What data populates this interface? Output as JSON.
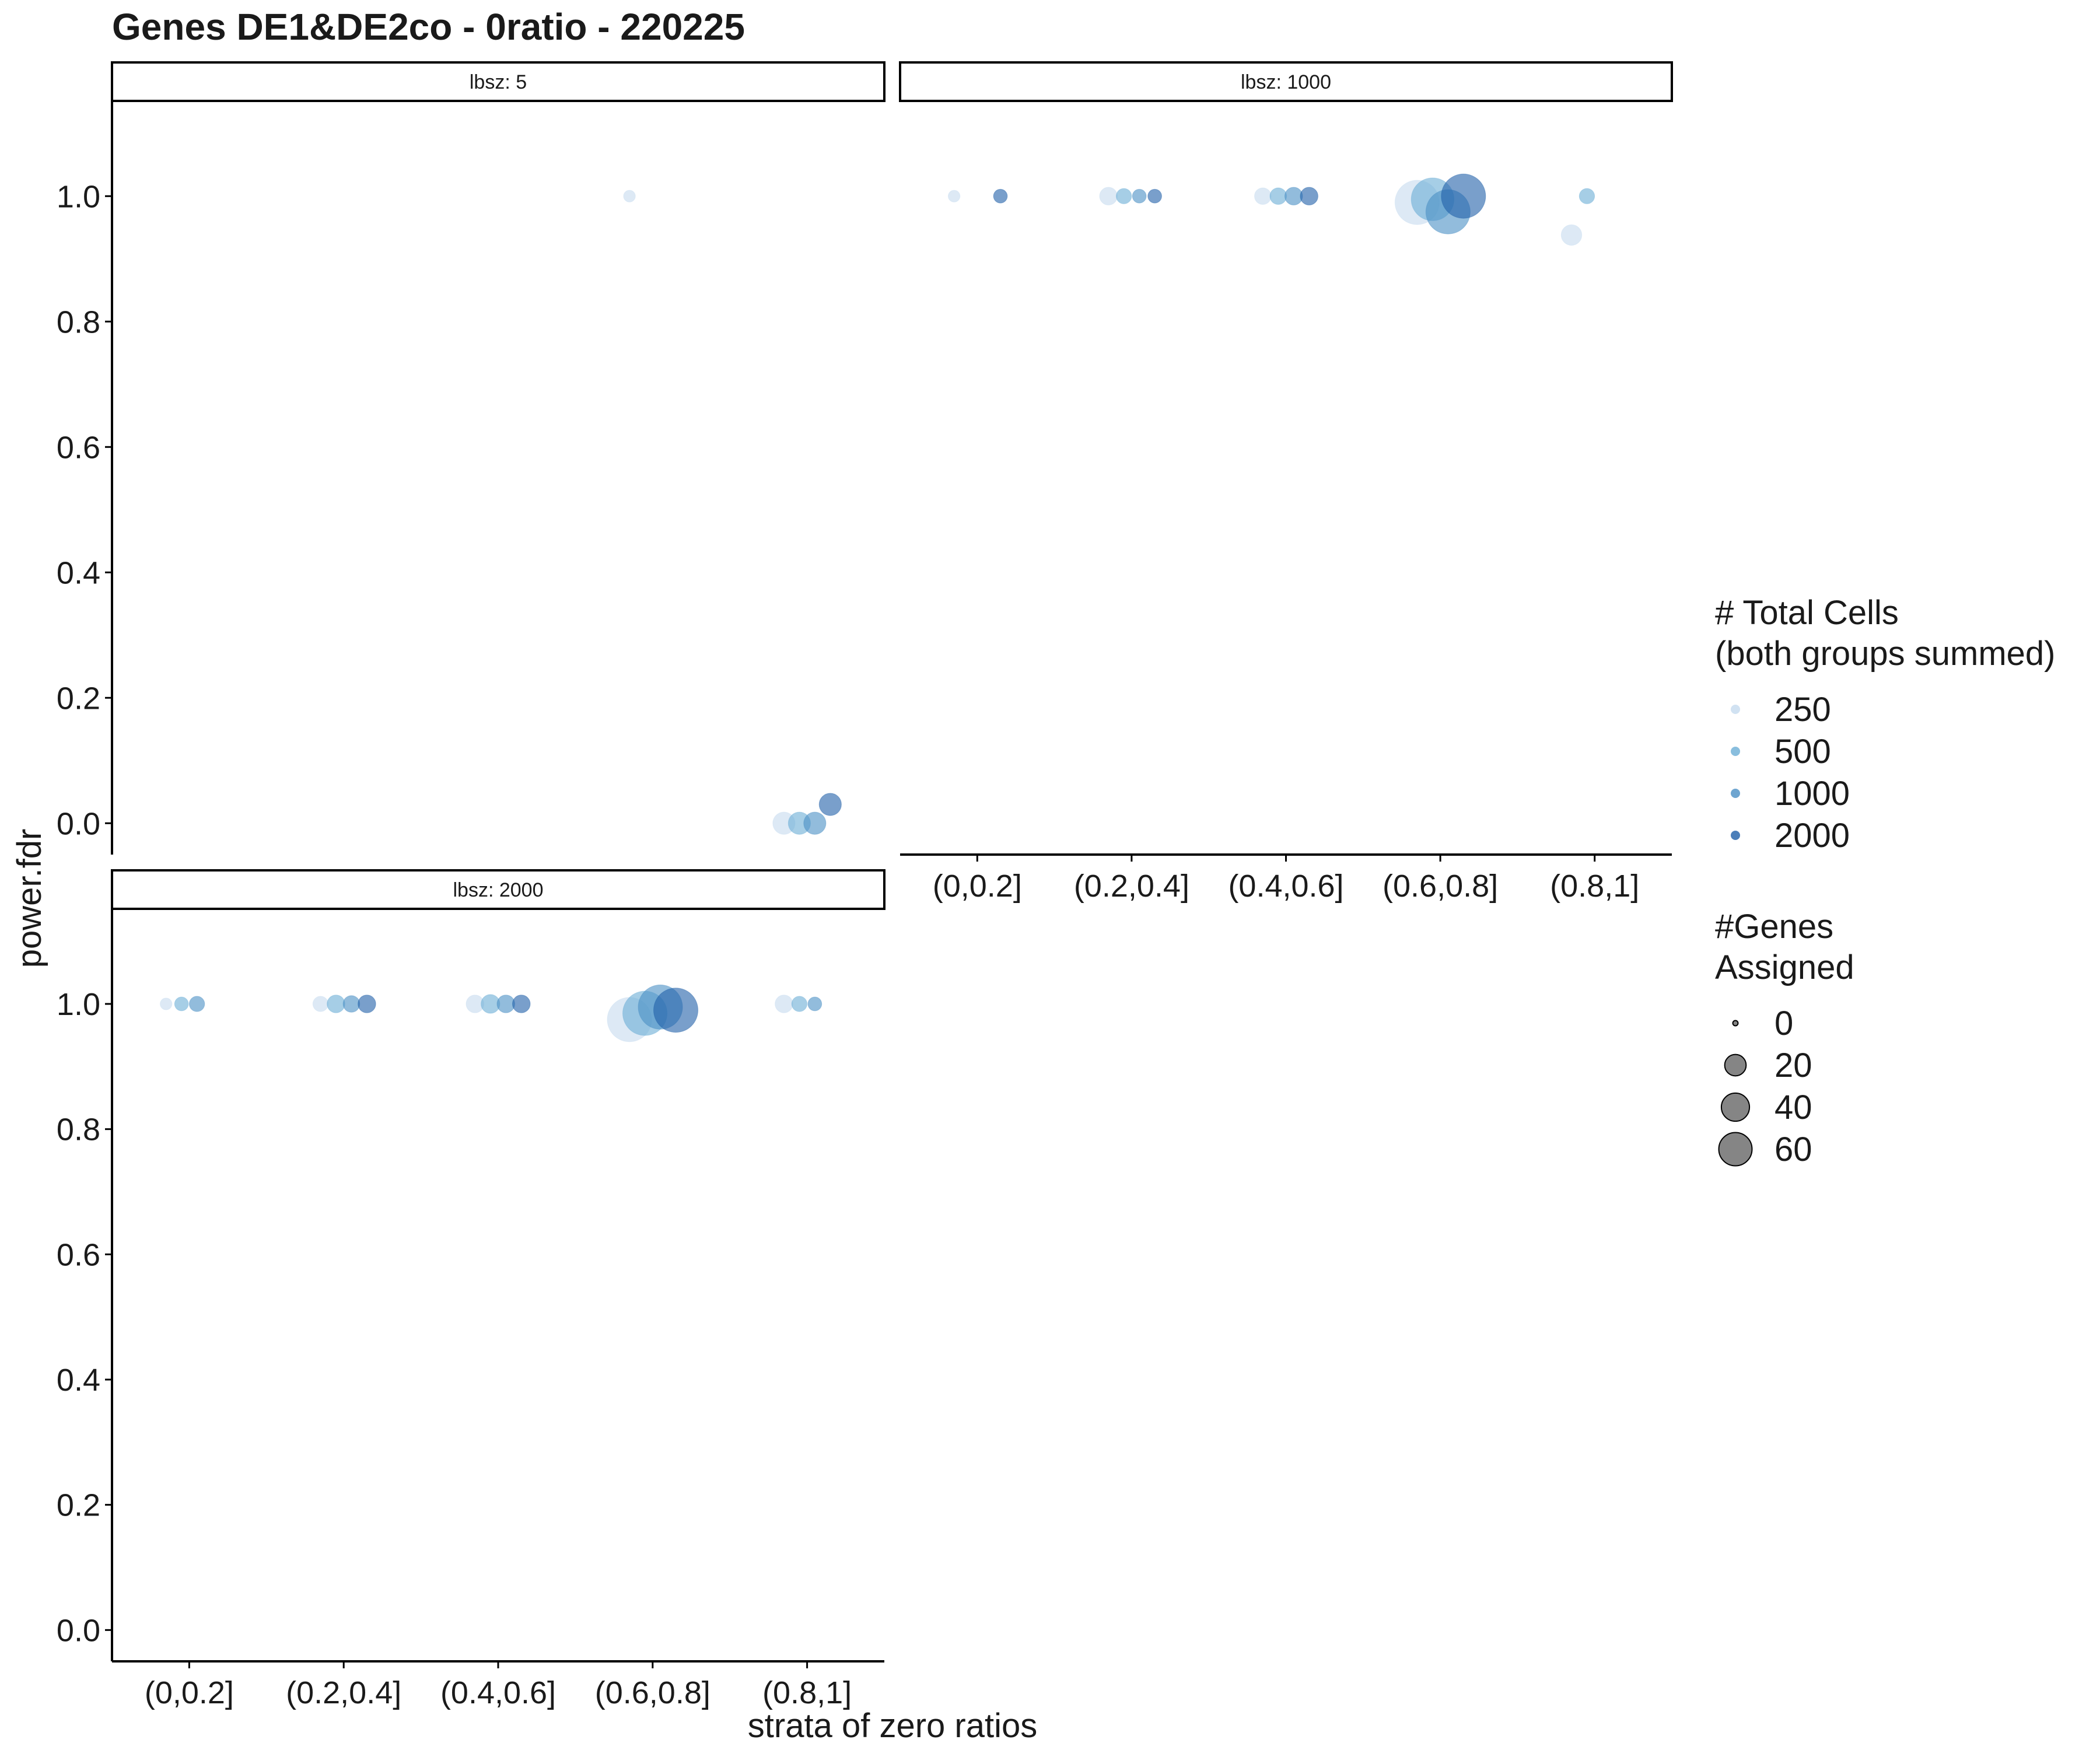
{
  "chart_data": {
    "type": "scatter",
    "title": "Genes DE1&DE2co - 0ratio - 220225",
    "xlabel": "strata of zero ratios",
    "ylabel": "power.fdr",
    "categories": [
      "(0,0.2]",
      "(0.2,0.4]",
      "(0.4,0.6]",
      "(0.6,0.8]",
      "(0.8,1]"
    ],
    "ylim": [
      -0.05,
      1.15
    ],
    "yticks": [
      0.0,
      0.2,
      0.4,
      0.6,
      0.8,
      1.0
    ],
    "ytick_labels": [
      "0.0",
      "0.2",
      "0.4",
      "0.6",
      "0.8",
      "1.0"
    ],
    "grid": false,
    "facets": [
      {
        "label": "lbsz: 5",
        "points": [
          {
            "category": "(0.6,0.8]",
            "offset": -0.15,
            "y": 1.0,
            "cells": 250,
            "genes": 1
          },
          {
            "category": "(0.8,1]",
            "offset": -0.15,
            "y": 0.0,
            "cells": 250,
            "genes": 10
          },
          {
            "category": "(0.8,1]",
            "offset": -0.05,
            "y": 0.0,
            "cells": 500,
            "genes": 10
          },
          {
            "category": "(0.8,1]",
            "offset": 0.05,
            "y": 0.0,
            "cells": 1000,
            "genes": 10
          },
          {
            "category": "(0.8,1]",
            "offset": 0.15,
            "y": 0.03,
            "cells": 2000,
            "genes": 10
          }
        ]
      },
      {
        "label": "lbsz: 1000",
        "points": [
          {
            "category": "(0,0.2]",
            "offset": -0.15,
            "y": 1.0,
            "cells": 250,
            "genes": 1
          },
          {
            "category": "(0,0.2]",
            "offset": 0.15,
            "y": 1.0,
            "cells": 2000,
            "genes": 2
          },
          {
            "category": "(0.2,0.4]",
            "offset": -0.15,
            "y": 1.0,
            "cells": 250,
            "genes": 5
          },
          {
            "category": "(0.2,0.4]",
            "offset": -0.05,
            "y": 1.0,
            "cells": 500,
            "genes": 3
          },
          {
            "category": "(0.2,0.4]",
            "offset": 0.05,
            "y": 1.0,
            "cells": 1000,
            "genes": 2
          },
          {
            "category": "(0.2,0.4]",
            "offset": 0.15,
            "y": 1.0,
            "cells": 2000,
            "genes": 2
          },
          {
            "category": "(0.4,0.6]",
            "offset": -0.15,
            "y": 1.0,
            "cells": 250,
            "genes": 4
          },
          {
            "category": "(0.4,0.6]",
            "offset": -0.05,
            "y": 1.0,
            "cells": 500,
            "genes": 4
          },
          {
            "category": "(0.4,0.6]",
            "offset": 0.05,
            "y": 1.0,
            "cells": 1000,
            "genes": 5
          },
          {
            "category": "(0.4,0.6]",
            "offset": 0.15,
            "y": 1.0,
            "cells": 2000,
            "genes": 5
          },
          {
            "category": "(0.6,0.8]",
            "offset": -0.15,
            "y": 0.99,
            "cells": 250,
            "genes": 60
          },
          {
            "category": "(0.6,0.8]",
            "offset": -0.05,
            "y": 0.995,
            "cells": 500,
            "genes": 55
          },
          {
            "category": "(0.6,0.8]",
            "offset": 0.05,
            "y": 0.975,
            "cells": 1000,
            "genes": 60
          },
          {
            "category": "(0.6,0.8]",
            "offset": 0.15,
            "y": 1.0,
            "cells": 2000,
            "genes": 60
          },
          {
            "category": "(0.8,1]",
            "offset": -0.15,
            "y": 0.938,
            "cells": 250,
            "genes": 8
          },
          {
            "category": "(0.8,1]",
            "offset": -0.05,
            "y": 1.0,
            "cells": 500,
            "genes": 3
          }
        ]
      },
      {
        "label": "lbsz: 2000",
        "points": [
          {
            "category": "(0,0.2]",
            "offset": -0.15,
            "y": 1.0,
            "cells": 250,
            "genes": 1
          },
          {
            "category": "(0,0.2]",
            "offset": -0.05,
            "y": 1.0,
            "cells": 500,
            "genes": 2
          },
          {
            "category": "(0,0.2]",
            "offset": 0.05,
            "y": 1.0,
            "cells": 1000,
            "genes": 3
          },
          {
            "category": "(0.2,0.4]",
            "offset": -0.15,
            "y": 1.0,
            "cells": 250,
            "genes": 3
          },
          {
            "category": "(0.2,0.4]",
            "offset": -0.05,
            "y": 1.0,
            "cells": 500,
            "genes": 5
          },
          {
            "category": "(0.2,0.4]",
            "offset": 0.05,
            "y": 1.0,
            "cells": 1000,
            "genes": 4
          },
          {
            "category": "(0.2,0.4]",
            "offset": 0.15,
            "y": 1.0,
            "cells": 2000,
            "genes": 5
          },
          {
            "category": "(0.4,0.6]",
            "offset": -0.15,
            "y": 1.0,
            "cells": 250,
            "genes": 5
          },
          {
            "category": "(0.4,0.6]",
            "offset": -0.05,
            "y": 1.0,
            "cells": 500,
            "genes": 6
          },
          {
            "category": "(0.4,0.6]",
            "offset": 0.05,
            "y": 1.0,
            "cells": 1000,
            "genes": 5
          },
          {
            "category": "(0.4,0.6]",
            "offset": 0.15,
            "y": 1.0,
            "cells": 2000,
            "genes": 5
          },
          {
            "category": "(0.6,0.8]",
            "offset": -0.15,
            "y": 0.975,
            "cells": 250,
            "genes": 60
          },
          {
            "category": "(0.6,0.8]",
            "offset": -0.05,
            "y": 0.985,
            "cells": 500,
            "genes": 60
          },
          {
            "category": "(0.6,0.8]",
            "offset": 0.05,
            "y": 0.995,
            "cells": 1000,
            "genes": 60
          },
          {
            "category": "(0.6,0.8]",
            "offset": 0.15,
            "y": 0.99,
            "cells": 2000,
            "genes": 60
          },
          {
            "category": "(0.8,1]",
            "offset": -0.15,
            "y": 1.0,
            "cells": 250,
            "genes": 5
          },
          {
            "category": "(0.8,1]",
            "offset": -0.05,
            "y": 1.0,
            "cells": 500,
            "genes": 3
          },
          {
            "category": "(0.8,1]",
            "offset": 0.05,
            "y": 1.0,
            "cells": 1000,
            "genes": 2
          }
        ]
      }
    ],
    "legend": {
      "placement": "right",
      "color": {
        "title_lines": [
          "# Total Cells",
          "(both groups summed)"
        ],
        "entries": [
          {
            "label": "250",
            "value": 250,
            "color": "#c6dbef"
          },
          {
            "label": "500",
            "value": 500,
            "color": "#6baed6"
          },
          {
            "label": "1000",
            "value": 1000,
            "color": "#4a8fc4"
          },
          {
            "label": "2000",
            "value": 2000,
            "color": "#1f5fa8"
          }
        ]
      },
      "size": {
        "title_lines": [
          "#Genes",
          "Assigned"
        ],
        "entries": [
          {
            "label": "0",
            "value": 0
          },
          {
            "label": "20",
            "value": 20
          },
          {
            "label": "40",
            "value": 40
          },
          {
            "label": "60",
            "value": 60
          }
        ],
        "color": "#333333"
      }
    }
  }
}
